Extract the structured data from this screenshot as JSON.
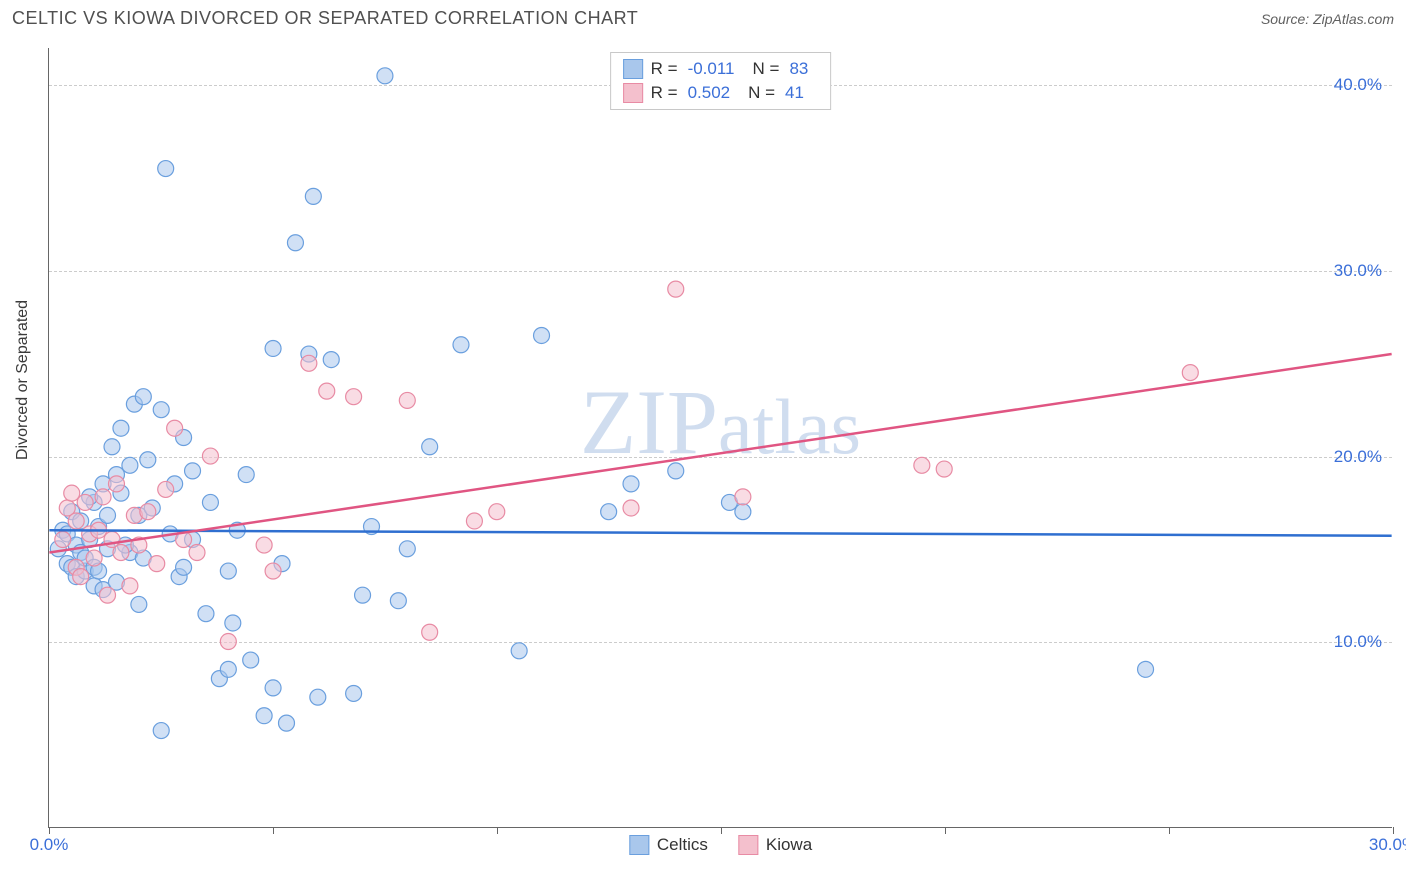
{
  "title": "CELTIC VS KIOWA DIVORCED OR SEPARATED CORRELATION CHART",
  "source": "Source: ZipAtlas.com",
  "ylabel": "Divorced or Separated",
  "watermark": "ZIPatlas",
  "chart": {
    "type": "scatter",
    "xlim": [
      0,
      30
    ],
    "ylim": [
      0,
      42
    ],
    "x_ticks": [
      0,
      5,
      10,
      15,
      20,
      25,
      30
    ],
    "x_tick_labels": {
      "0": "0.0%",
      "30": "30.0%"
    },
    "y_ticks": [
      10,
      20,
      30,
      40
    ],
    "y_tick_labels": {
      "10": "10.0%",
      "20": "20.0%",
      "30": "30.0%",
      "40": "40.0%"
    },
    "grid_color": "#cccccc",
    "axis_color": "#666666",
    "tick_label_color": "#3b6fd8",
    "background_color": "#ffffff",
    "marker_radius": 8,
    "marker_opacity": 0.55,
    "series": [
      {
        "name": "Celtics",
        "color_fill": "#a9c7ec",
        "color_stroke": "#6a9fde",
        "R": "-0.011",
        "N": "83",
        "regression": {
          "y_at_x0": 16.0,
          "y_at_x30": 15.7,
          "color": "#2f6fd0",
          "width": 2.5
        },
        "points": [
          [
            0.2,
            15.0
          ],
          [
            0.3,
            16.0
          ],
          [
            0.4,
            14.2
          ],
          [
            0.4,
            15.8
          ],
          [
            0.5,
            14.0
          ],
          [
            0.5,
            17.0
          ],
          [
            0.6,
            13.5
          ],
          [
            0.6,
            15.2
          ],
          [
            0.7,
            14.8
          ],
          [
            0.7,
            16.5
          ],
          [
            0.8,
            13.8
          ],
          [
            0.8,
            14.5
          ],
          [
            0.9,
            15.5
          ],
          [
            1.0,
            14.0
          ],
          [
            1.0,
            13.0
          ],
          [
            1.0,
            17.5
          ],
          [
            1.1,
            16.2
          ],
          [
            1.2,
            12.8
          ],
          [
            1.2,
            18.5
          ],
          [
            1.3,
            15.0
          ],
          [
            1.4,
            20.5
          ],
          [
            1.5,
            13.2
          ],
          [
            1.5,
            19.0
          ],
          [
            1.6,
            18.0
          ],
          [
            1.8,
            19.5
          ],
          [
            1.8,
            14.8
          ],
          [
            1.9,
            22.8
          ],
          [
            2.0,
            16.8
          ],
          [
            2.0,
            12.0
          ],
          [
            2.1,
            23.2
          ],
          [
            2.2,
            19.8
          ],
          [
            2.3,
            17.2
          ],
          [
            2.5,
            22.5
          ],
          [
            2.5,
            5.2
          ],
          [
            2.6,
            35.5
          ],
          [
            2.8,
            18.5
          ],
          [
            2.9,
            13.5
          ],
          [
            3.0,
            21.0
          ],
          [
            3.0,
            14.0
          ],
          [
            3.2,
            19.2
          ],
          [
            3.5,
            11.5
          ],
          [
            3.6,
            17.5
          ],
          [
            3.8,
            8.0
          ],
          [
            4.0,
            13.8
          ],
          [
            4.0,
            8.5
          ],
          [
            4.2,
            16.0
          ],
          [
            4.4,
            19.0
          ],
          [
            4.5,
            9.0
          ],
          [
            4.8,
            6.0
          ],
          [
            5.0,
            7.5
          ],
          [
            5.0,
            25.8
          ],
          [
            5.2,
            14.2
          ],
          [
            5.3,
            5.6
          ],
          [
            5.5,
            31.5
          ],
          [
            5.8,
            25.5
          ],
          [
            5.9,
            34.0
          ],
          [
            6.0,
            7.0
          ],
          [
            6.3,
            25.2
          ],
          [
            6.8,
            7.2
          ],
          [
            7.0,
            12.5
          ],
          [
            7.2,
            16.2
          ],
          [
            7.5,
            40.5
          ],
          [
            7.8,
            12.2
          ],
          [
            8.0,
            15.0
          ],
          [
            8.5,
            20.5
          ],
          [
            9.2,
            26.0
          ],
          [
            10.5,
            9.5
          ],
          [
            11.0,
            26.5
          ],
          [
            12.5,
            17.0
          ],
          [
            13.0,
            18.5
          ],
          [
            14.0,
            19.2
          ],
          [
            15.2,
            17.5
          ],
          [
            15.5,
            17.0
          ],
          [
            24.5,
            8.5
          ],
          [
            1.3,
            16.8
          ],
          [
            1.6,
            21.5
          ],
          [
            2.1,
            14.5
          ],
          [
            2.7,
            15.8
          ],
          [
            0.9,
            17.8
          ],
          [
            1.1,
            13.8
          ],
          [
            3.2,
            15.5
          ],
          [
            4.1,
            11.0
          ],
          [
            1.7,
            15.2
          ]
        ]
      },
      {
        "name": "Kiowa",
        "color_fill": "#f4c0cd",
        "color_stroke": "#e88ba4",
        "R": "0.502",
        "N": "41",
        "regression": {
          "y_at_x0": 14.8,
          "y_at_x30": 25.5,
          "color": "#e05582",
          "width": 2.5
        },
        "points": [
          [
            0.3,
            15.5
          ],
          [
            0.4,
            17.2
          ],
          [
            0.5,
            18.0
          ],
          [
            0.6,
            14.0
          ],
          [
            0.6,
            16.5
          ],
          [
            0.7,
            13.5
          ],
          [
            0.8,
            17.5
          ],
          [
            0.9,
            15.8
          ],
          [
            1.0,
            14.5
          ],
          [
            1.1,
            16.0
          ],
          [
            1.2,
            17.8
          ],
          [
            1.3,
            12.5
          ],
          [
            1.4,
            15.5
          ],
          [
            1.5,
            18.5
          ],
          [
            1.6,
            14.8
          ],
          [
            1.8,
            13.0
          ],
          [
            1.9,
            16.8
          ],
          [
            2.0,
            15.2
          ],
          [
            2.2,
            17.0
          ],
          [
            2.4,
            14.2
          ],
          [
            2.6,
            18.2
          ],
          [
            2.8,
            21.5
          ],
          [
            3.0,
            15.5
          ],
          [
            3.3,
            14.8
          ],
          [
            3.6,
            20.0
          ],
          [
            4.0,
            10.0
          ],
          [
            4.8,
            15.2
          ],
          [
            5.0,
            13.8
          ],
          [
            5.8,
            25.0
          ],
          [
            6.2,
            23.5
          ],
          [
            6.8,
            23.2
          ],
          [
            8.0,
            23.0
          ],
          [
            8.5,
            10.5
          ],
          [
            9.5,
            16.5
          ],
          [
            10.0,
            17.0
          ],
          [
            13.0,
            17.2
          ],
          [
            14.0,
            29.0
          ],
          [
            15.5,
            17.8
          ],
          [
            19.5,
            19.5
          ],
          [
            20.0,
            19.3
          ],
          [
            25.5,
            24.5
          ]
        ]
      }
    ]
  },
  "legend_bottom": [
    {
      "label": "Celtics",
      "fill": "#a9c7ec",
      "stroke": "#6a9fde"
    },
    {
      "label": "Kiowa",
      "fill": "#f4c0cd",
      "stroke": "#e88ba4"
    }
  ]
}
